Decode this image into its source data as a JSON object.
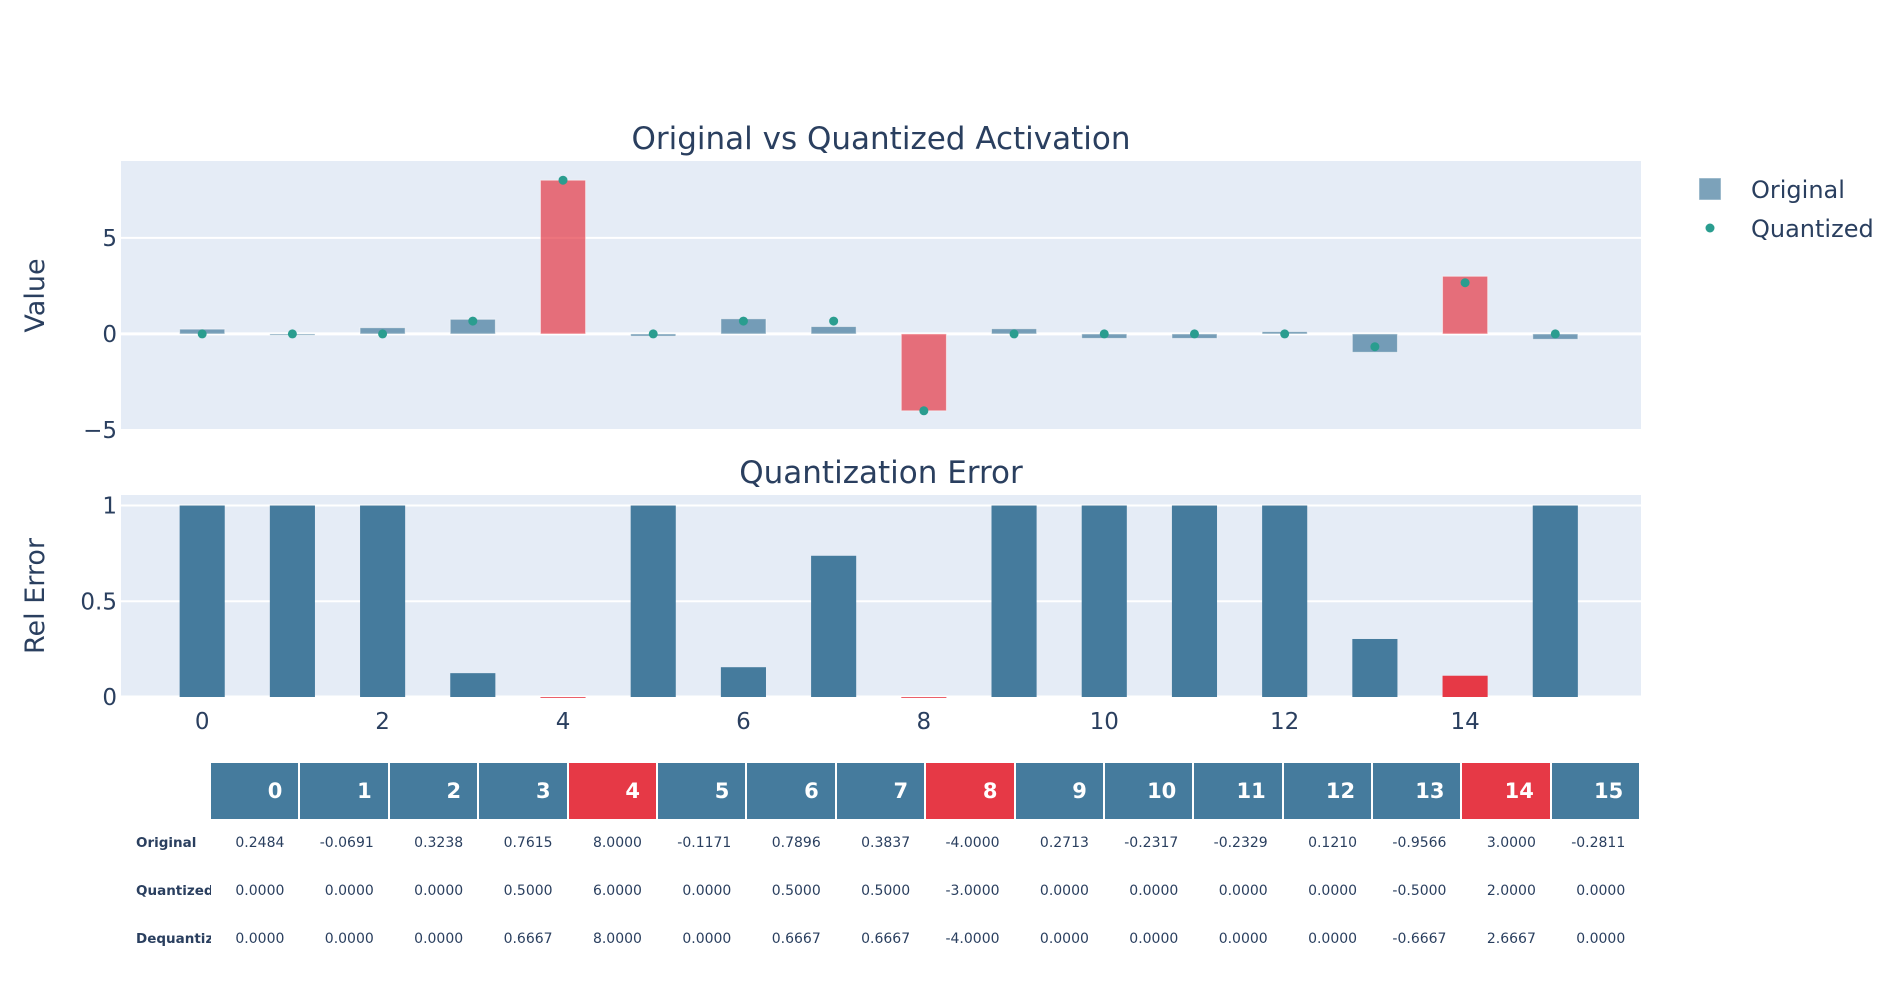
{
  "chart_data": [
    {
      "type": "bar",
      "title": "Original vs Quantized Activation",
      "ylabel": "Value",
      "xlabel": "",
      "x": [
        0,
        1,
        2,
        3,
        4,
        5,
        6,
        7,
        8,
        9,
        10,
        11,
        12,
        13,
        14,
        15
      ],
      "ylim": [
        -5,
        9
      ],
      "xlim": [
        -0.9,
        15.95
      ],
      "yticks": [
        -5,
        0,
        5
      ],
      "grid": true,
      "legend_position": "right",
      "series": [
        {
          "name": "Original",
          "kind": "bar",
          "values": [
            0.2484,
            -0.0691,
            0.3238,
            0.7615,
            8.0,
            -0.1171,
            0.7896,
            0.3837,
            -4.0,
            0.2713,
            -0.2317,
            -0.2329,
            0.121,
            -0.9566,
            3.0,
            -0.2811
          ]
        },
        {
          "name": "Quantized",
          "kind": "markers",
          "values": [
            0,
            0,
            0,
            0.6667,
            8.0,
            0,
            0.6667,
            0.6667,
            -4.0,
            0,
            0,
            0,
            0,
            -0.6667,
            2.6667,
            0
          ]
        }
      ],
      "highlight_indices": [
        4,
        8,
        14
      ]
    },
    {
      "type": "bar",
      "title": "Quantization Error",
      "ylabel": "Rel Error",
      "xlabel": "",
      "x": [
        0,
        1,
        2,
        3,
        4,
        5,
        6,
        7,
        8,
        9,
        10,
        11,
        12,
        13,
        14,
        15
      ],
      "ylim": [
        0,
        1.055
      ],
      "xlim": [
        -0.9,
        15.95
      ],
      "yticks": [
        0,
        0.5,
        1
      ],
      "xticks": [
        0,
        2,
        4,
        6,
        8,
        10,
        12,
        14
      ],
      "grid": true,
      "values": [
        1,
        1,
        1,
        0.1245,
        0,
        1,
        0.1556,
        0.7376,
        0,
        1,
        1,
        1,
        1,
        0.303,
        0.1111,
        1
      ],
      "highlight_indices": [
        4,
        8,
        14
      ]
    },
    {
      "type": "table",
      "header": [
        "0",
        "1",
        "2",
        "3",
        "4",
        "5",
        "6",
        "7",
        "8",
        "9",
        "10",
        "11",
        "12",
        "13",
        "14",
        "15"
      ],
      "highlight_columns": [
        4,
        8,
        14
      ],
      "rows": [
        {
          "label": "Original",
          "cells": [
            "0.2484",
            "-0.0691",
            "0.3238",
            "0.7615",
            "8.0000",
            "-0.1171",
            "0.7896",
            "0.3837",
            "-4.0000",
            "0.2713",
            "-0.2317",
            "-0.2329",
            "0.1210",
            "-0.9566",
            "3.0000",
            "-0.2811"
          ]
        },
        {
          "label": "Quantized",
          "cells": [
            "0.0000",
            "0.0000",
            "0.0000",
            "0.5000",
            "6.0000",
            "0.0000",
            "0.5000",
            "0.5000",
            "-3.0000",
            "0.0000",
            "0.0000",
            "0.0000",
            "0.0000",
            "-0.5000",
            "2.0000",
            "0.0000"
          ]
        },
        {
          "label": "Dequantized",
          "cells": [
            "0.0000",
            "0.0000",
            "0.0000",
            "0.6667",
            "8.0000",
            "0.0000",
            "0.6667",
            "0.6667",
            "-4.0000",
            "0.0000",
            "0.0000",
            "0.0000",
            "0.0000",
            "-0.6667",
            "2.6667",
            "0.0000"
          ]
        }
      ]
    }
  ],
  "colors": {
    "bar": "#457b9d",
    "highlight": "#e63946",
    "marker": "#2a9d8f",
    "plot_bg": "#e5ecf6",
    "text": "#2a3f5f"
  }
}
